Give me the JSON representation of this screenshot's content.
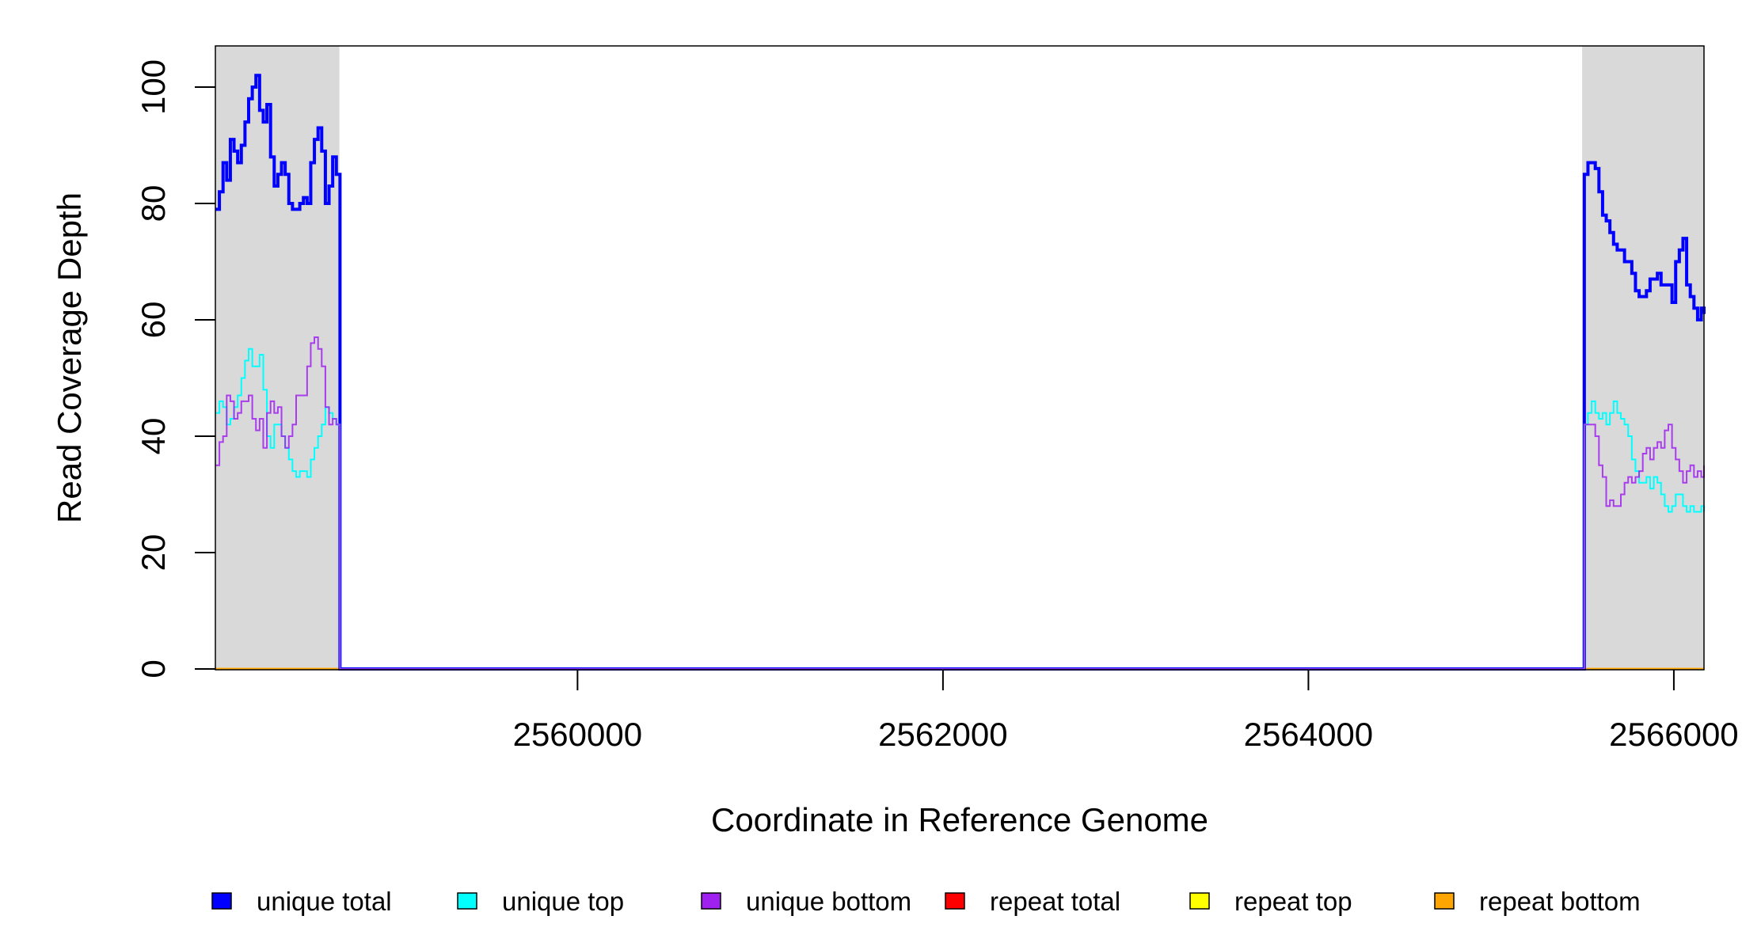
{
  "chart_data": {
    "type": "line",
    "title": "",
    "xlabel": "Coordinate in Reference Genome",
    "ylabel": "Read Coverage Depth",
    "xlim": [
      2558018,
      2566165
    ],
    "ylim": [
      0,
      100
    ],
    "x_ticks": [
      2560000,
      2562000,
      2564000,
      2566000
    ],
    "x_tick_labels": [
      "2560000",
      "2562000",
      "2564000",
      "2566000"
    ],
    "y_ticks": [
      0,
      20,
      40,
      60,
      80,
      100
    ],
    "y_tick_labels": [
      "0",
      "20",
      "40",
      "60",
      "80",
      "100"
    ],
    "grid": false,
    "legend_position": "bottom",
    "shaded_regions": [
      [
        2558018,
        2558697
      ],
      [
        2565498,
        2566165
      ]
    ],
    "shade_color": "#d9d9d9",
    "left_x_start": 2558020,
    "right_x_start": 2565510,
    "step": 20,
    "gap": [
      2558700,
      2565500
    ],
    "series": [
      {
        "name": "unique total",
        "color": "#0000ff",
        "left": [
          79,
          82,
          87,
          84,
          91,
          89,
          87,
          90,
          94,
          98,
          100,
          102,
          96,
          94,
          97,
          88,
          83,
          85,
          87,
          85,
          80,
          79,
          79,
          80,
          81,
          80,
          87,
          91,
          93,
          89,
          80,
          83,
          88,
          85
        ],
        "right": [
          85,
          87,
          87,
          86,
          82,
          78,
          77,
          75,
          73,
          72,
          72,
          70,
          70,
          68,
          65,
          64,
          64,
          65,
          67,
          67,
          68,
          66,
          66,
          66,
          63,
          70,
          72,
          74,
          66,
          64,
          62,
          60,
          62,
          61
        ]
      },
      {
        "name": "unique top",
        "color": "#00ffff",
        "left": [
          44,
          46,
          45,
          42,
          43,
          45,
          47,
          50,
          53,
          55,
          52,
          52,
          54,
          48,
          40,
          38,
          42,
          42,
          40,
          38,
          36,
          34,
          33,
          34,
          34,
          33,
          36,
          38,
          40,
          42,
          45,
          44,
          43,
          42
        ],
        "right": [
          42,
          44,
          46,
          44,
          43,
          44,
          42,
          44,
          46,
          44,
          43,
          42,
          40,
          36,
          34,
          32,
          32,
          33,
          31,
          33,
          32,
          30,
          28,
          27,
          28,
          30,
          30,
          28,
          27,
          28,
          27,
          27,
          28,
          27
        ]
      },
      {
        "name": "unique bottom",
        "color": "#a020f0",
        "left": [
          35,
          39,
          40,
          47,
          46,
          43,
          44,
          46,
          46,
          47,
          43,
          41,
          43,
          38,
          44,
          46,
          44,
          45,
          40,
          38,
          40,
          42,
          47,
          47,
          47,
          52,
          56,
          57,
          55,
          52,
          45,
          42,
          43,
          42
        ],
        "right": [
          42,
          42,
          42,
          40,
          35,
          33,
          28,
          29,
          28,
          28,
          30,
          32,
          33,
          32,
          33,
          34,
          37,
          38,
          36,
          38,
          39,
          38,
          41,
          42,
          38,
          36,
          34,
          32,
          34,
          35,
          33,
          34,
          33,
          35
        ]
      },
      {
        "name": "repeat total",
        "color": "#ff0000",
        "constant": 0
      },
      {
        "name": "repeat top",
        "color": "#ffff00",
        "constant": 0
      },
      {
        "name": "repeat bottom",
        "color": "#ffa500",
        "constant": 0
      }
    ]
  }
}
